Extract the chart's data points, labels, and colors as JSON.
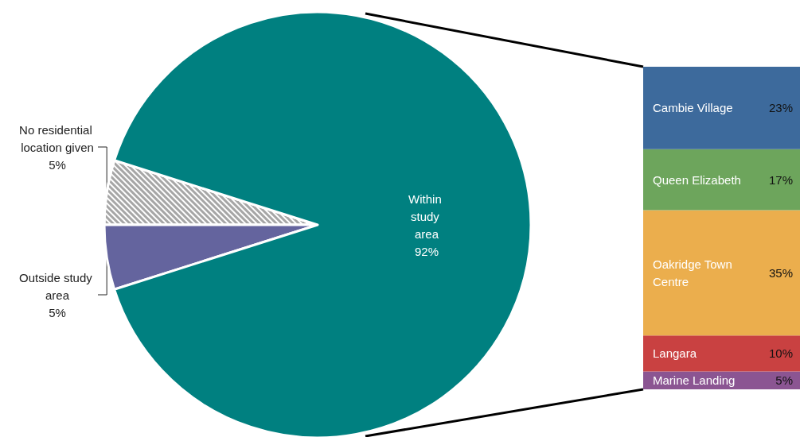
{
  "chart_data": [
    {
      "type": "pie",
      "categories": [
        "No residential location given",
        "Outside study area",
        "Within study area"
      ],
      "values": [
        5,
        5,
        92
      ],
      "colors": [
        "#a6a6a6",
        "#64649e",
        "#008080"
      ],
      "value_labels": [
        "5%",
        "5%",
        "92%"
      ],
      "legend": false
    },
    {
      "type": "bar",
      "stacked": true,
      "categories": [
        null
      ],
      "legend": false,
      "series": [
        {
          "name": "Marine Landing",
          "color": "#8b5592",
          "values": [
            5
          ],
          "value_labels": [
            "5%"
          ]
        },
        {
          "name": "Langara",
          "color": "#c94141",
          "values": [
            10
          ],
          "value_labels": [
            "10%"
          ]
        },
        {
          "name": "Oakridge Town Centre",
          "color": "#ebae4d",
          "values": [
            35
          ],
          "value_labels": [
            "35%"
          ]
        },
        {
          "name": "Queen Elizabeth",
          "color": "#6da55c",
          "values": [
            17
          ],
          "value_labels": [
            "17%"
          ]
        },
        {
          "name": "Cambie Village",
          "color": "#3d6a9c",
          "values": [
            23
          ],
          "value_labels": [
            "23%"
          ]
        }
      ]
    }
  ]
}
